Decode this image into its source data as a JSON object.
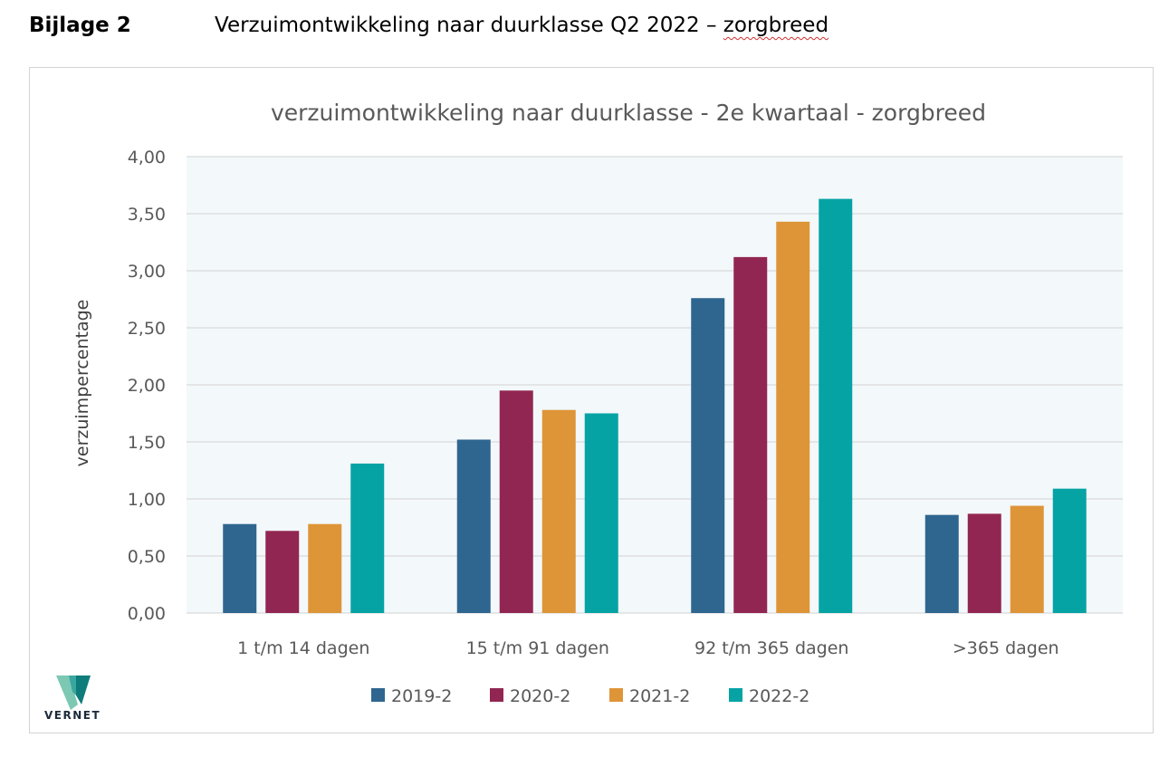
{
  "document": {
    "appendix_label": "Bijlage 2",
    "title_prefix": "Verzuimontwikkeling naar duurklasse Q2 2022 – ",
    "title_underlined": "zorgbreed"
  },
  "logo": {
    "text": "VERNET",
    "icon": "vernet-logo-icon"
  },
  "colors": {
    "series": [
      "#2e6690",
      "#922652",
      "#de9538",
      "#06a3a5"
    ],
    "plot_bg": "#f3f8fb",
    "grid": "#d9d9d9",
    "text": "#595959"
  },
  "chart_data": {
    "type": "bar",
    "title": "verzuimontwikkeling naar duurklasse - 2e kwartaal - zorgbreed",
    "xlabel": "",
    "ylabel": "verzuimpercentage",
    "ylim": [
      0,
      4
    ],
    "yticks": [
      "0,00",
      "0,50",
      "1,00",
      "1,50",
      "2,00",
      "2,50",
      "3,00",
      "3,50",
      "4,00"
    ],
    "categories": [
      "1 t/m 14 dagen",
      "15 t/m 91 dagen",
      "92 t/m 365 dagen",
      ">365 dagen"
    ],
    "series": [
      {
        "name": "2019-2",
        "values": [
          0.78,
          1.52,
          2.76,
          0.86
        ]
      },
      {
        "name": "2020-2",
        "values": [
          0.72,
          1.95,
          3.12,
          0.87
        ]
      },
      {
        "name": "2021-2",
        "values": [
          0.78,
          1.78,
          3.43,
          0.94
        ]
      },
      {
        "name": "2022-2",
        "values": [
          1.31,
          1.75,
          3.63,
          1.09
        ]
      }
    ],
    "grid": true,
    "legend": "bottom"
  }
}
